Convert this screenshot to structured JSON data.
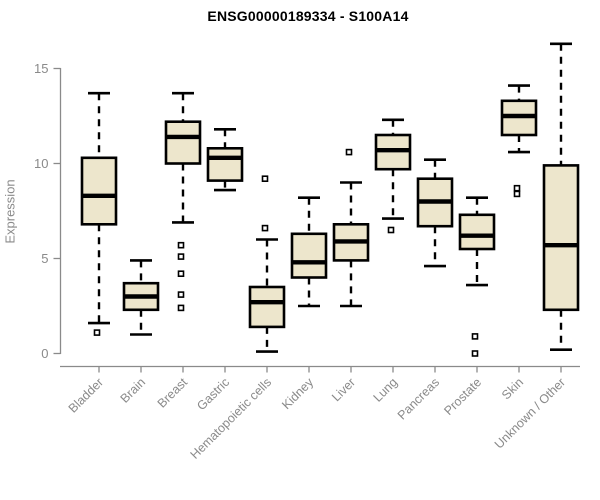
{
  "title": "ENSG00000189334 - S100A14",
  "chart_data": {
    "type": "boxplot",
    "title": "ENSG00000189334 - S100A14",
    "xlabel": "",
    "ylabel": "Expression",
    "ylim": [
      0,
      15
    ],
    "yticks": [
      0,
      5,
      10,
      15
    ],
    "grid": false,
    "legend": "none",
    "box_fill_color": "#EDE6CC",
    "box_stroke_color": "#000000",
    "axis_color": "#8a8a8a",
    "label_color": "#8a8a8a",
    "title_color": "#000000",
    "categories": [
      "Bladder",
      "Brain",
      "Breast",
      "Gastric",
      "Hematopoietic cells",
      "Kidney",
      "Liver",
      "Lung",
      "Pancreas",
      "Prostate",
      "Skin",
      "Unknown / Other"
    ],
    "series": [
      {
        "category": "Bladder",
        "whisker_low": 1.6,
        "q1": 6.8,
        "median": 8.3,
        "q3": 10.3,
        "whisker_high": 13.7,
        "outliers": [
          1.1
        ]
      },
      {
        "category": "Brain",
        "whisker_low": 1.0,
        "q1": 2.3,
        "median": 3.0,
        "q3": 3.7,
        "whisker_high": 4.9,
        "outliers": []
      },
      {
        "category": "Breast",
        "whisker_low": 6.9,
        "q1": 10.0,
        "median": 11.4,
        "q3": 12.2,
        "whisker_high": 13.7,
        "outliers": [
          5.7,
          5.1,
          4.2,
          3.1,
          2.4
        ]
      },
      {
        "category": "Gastric",
        "whisker_low": 8.6,
        "q1": 9.1,
        "median": 10.3,
        "q3": 10.8,
        "whisker_high": 11.8,
        "outliers": []
      },
      {
        "category": "Hematopoietic cells",
        "whisker_low": 0.1,
        "q1": 1.4,
        "median": 2.7,
        "q3": 3.5,
        "whisker_high": 6.0,
        "outliers": [
          9.2,
          6.6
        ]
      },
      {
        "category": "Kidney",
        "whisker_low": 2.5,
        "q1": 4.0,
        "median": 4.8,
        "q3": 6.3,
        "whisker_high": 8.2,
        "outliers": []
      },
      {
        "category": "Liver",
        "whisker_low": 2.5,
        "q1": 4.9,
        "median": 5.9,
        "q3": 6.8,
        "whisker_high": 9.0,
        "outliers": [
          10.6
        ]
      },
      {
        "category": "Lung",
        "whisker_low": 7.1,
        "q1": 9.7,
        "median": 10.7,
        "q3": 11.5,
        "whisker_high": 12.3,
        "outliers": [
          6.5
        ]
      },
      {
        "category": "Pancreas",
        "whisker_low": 4.6,
        "q1": 6.7,
        "median": 8.0,
        "q3": 9.2,
        "whisker_high": 10.2,
        "outliers": []
      },
      {
        "category": "Prostate",
        "whisker_low": 3.6,
        "q1": 5.5,
        "median": 6.2,
        "q3": 7.3,
        "whisker_high": 8.2,
        "outliers": [
          0.9,
          0.0
        ]
      },
      {
        "category": "Skin",
        "whisker_low": 10.6,
        "q1": 11.5,
        "median": 12.5,
        "q3": 13.3,
        "whisker_high": 14.1,
        "outliers": [
          8.7,
          8.4
        ]
      },
      {
        "category": "Unknown / Other",
        "whisker_low": 0.2,
        "q1": 2.3,
        "median": 5.7,
        "q3": 9.9,
        "whisker_high": 16.3,
        "outliers": []
      }
    ]
  }
}
